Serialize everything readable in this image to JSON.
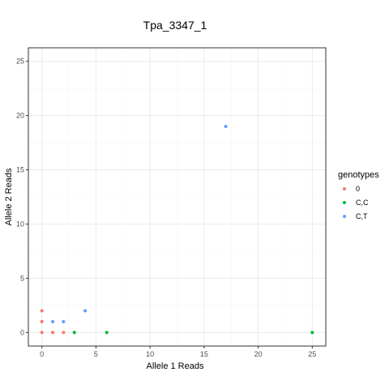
{
  "chart_data": {
    "type": "scatter",
    "title": "Tpa_3347_1",
    "xlabel": "Allele 1 Reads",
    "ylabel": "Allele 2 Reads",
    "xlim": [
      -1.25,
      26.25
    ],
    "ylim": [
      -1.25,
      26.25
    ],
    "x_ticks": [
      0,
      5,
      10,
      15,
      20,
      25
    ],
    "y_ticks": [
      0,
      5,
      10,
      15,
      20,
      25
    ],
    "grid": true,
    "legend": {
      "title": "genotypes",
      "placement": "right"
    },
    "series": [
      {
        "name": "0",
        "color": "#F8766D",
        "points": [
          [
            0,
            0
          ],
          [
            0,
            1
          ],
          [
            0,
            2
          ],
          [
            1,
            0
          ],
          [
            2,
            0
          ]
        ]
      },
      {
        "name": "C,C",
        "color": "#00BA38",
        "points": [
          [
            3,
            0
          ],
          [
            6,
            0
          ],
          [
            25,
            0
          ]
        ]
      },
      {
        "name": "C,T",
        "color": "#619CFF",
        "points": [
          [
            1,
            1
          ],
          [
            2,
            1
          ],
          [
            4,
            2
          ],
          [
            17,
            19
          ]
        ]
      }
    ]
  }
}
